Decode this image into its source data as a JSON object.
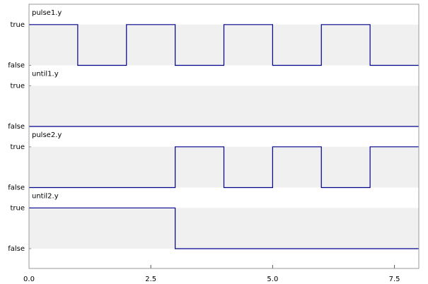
{
  "chart_data": [
    {
      "type": "line",
      "title": "pulse1.y",
      "x": [
        0,
        1,
        2,
        3,
        4,
        5,
        6,
        7,
        8
      ],
      "series": [
        {
          "color": "#00008b",
          "values": [
            1,
            0,
            1,
            0,
            1,
            0,
            1,
            0,
            0
          ]
        }
      ],
      "xlim": [
        0,
        8
      ],
      "ylim": [
        0,
        1.5
      ],
      "yticks": [
        {
          "value": 1,
          "label": "true"
        },
        {
          "value": 0,
          "label": "false"
        }
      ]
    },
    {
      "type": "line",
      "title": "until1.y",
      "x": [
        0,
        8
      ],
      "series": [
        {
          "color": "#00008b",
          "values": [
            0,
            0
          ]
        }
      ],
      "xlim": [
        0,
        8
      ],
      "ylim": [
        0,
        1.5
      ],
      "yticks": [
        {
          "value": 1,
          "label": "true"
        },
        {
          "value": 0,
          "label": "false"
        }
      ]
    },
    {
      "type": "line",
      "title": "pulse2.y",
      "x": [
        0,
        3,
        4,
        5,
        6,
        7,
        8
      ],
      "series": [
        {
          "color": "#00008b",
          "values": [
            0,
            1,
            0,
            1,
            0,
            1,
            1
          ]
        }
      ],
      "xlim": [
        0,
        8
      ],
      "ylim": [
        0,
        1.5
      ],
      "yticks": [
        {
          "value": 1,
          "label": "true"
        },
        {
          "value": 0,
          "label": "false"
        }
      ]
    },
    {
      "type": "line",
      "title": "until2.y",
      "x": [
        0,
        3,
        8
      ],
      "series": [
        {
          "color": "#00008b",
          "values": [
            1,
            0,
            0
          ]
        }
      ],
      "xlim": [
        0,
        8
      ],
      "ylim": [
        0,
        1.5
      ],
      "yticks": [
        {
          "value": 1,
          "label": "true"
        },
        {
          "value": 0,
          "label": "false"
        }
      ],
      "xticks": [
        {
          "value": 0,
          "label": "0.0"
        },
        2.5,
        {
          "value": 5,
          "label": "5.0"
        },
        7.5
      ]
    }
  ]
}
